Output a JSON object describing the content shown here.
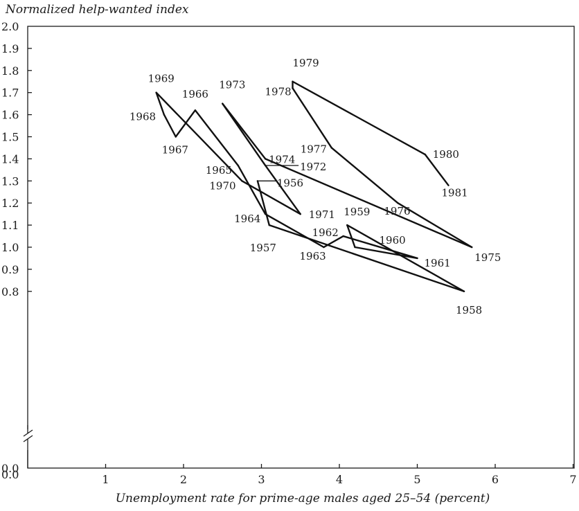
{
  "chart_data": {
    "type": "line",
    "title": "",
    "ylabel": "Normalized help-wanted index",
    "xlabel": "Unemployment rate for prime-age males aged 25–54 (percent)",
    "xlim": [
      0,
      7
    ],
    "ylim": [
      0.0,
      2.0
    ],
    "y_axis_break": "between 0.0 and 0.8",
    "grid": false,
    "x_ticks": [
      "1",
      "2",
      "3",
      "4",
      "5",
      "6",
      "7"
    ],
    "y_ticks": [
      "0.0",
      "0.8",
      "0.9",
      "1.0",
      "1.1",
      "1.2",
      "1.3",
      "1.4",
      "1.5",
      "1.6",
      "1.7",
      "1.8",
      "1.9",
      "2.0"
    ],
    "series": [
      {
        "points": [
          {
            "year": "1956",
            "x": 2.95,
            "y": 1.3
          },
          {
            "year": "1957",
            "x": 3.1,
            "y": 1.1
          },
          {
            "year": "1958",
            "x": 5.6,
            "y": 0.8
          },
          {
            "year": "1959",
            "x": 4.1,
            "y": 1.1
          },
          {
            "year": "1960",
            "x": 4.2,
            "y": 1.0
          },
          {
            "year": "1961",
            "x": 5.0,
            "y": 0.95
          },
          {
            "year": "1962",
            "x": 4.05,
            "y": 1.05
          },
          {
            "year": "1963",
            "x": 3.8,
            "y": 1.0
          },
          {
            "year": "1964",
            "x": 3.05,
            "y": 1.15
          },
          {
            "year": "1965",
            "x": 2.7,
            "y": 1.37
          },
          {
            "year": "1966",
            "x": 2.15,
            "y": 1.62
          },
          {
            "year": "1967",
            "x": 1.9,
            "y": 1.5
          },
          {
            "year": "1968",
            "x": 1.75,
            "y": 1.6
          },
          {
            "year": "1969",
            "x": 1.65,
            "y": 1.7
          },
          {
            "year": "1970",
            "x": 2.75,
            "y": 1.3
          },
          {
            "year": "1971",
            "x": 3.5,
            "y": 1.15
          },
          {
            "year": "1972",
            "x": 3.05,
            "y": 1.37
          },
          {
            "year": "1973",
            "x": 2.5,
            "y": 1.65
          },
          {
            "year": "1974",
            "x": 3.05,
            "y": 1.4
          },
          {
            "year": "1975",
            "x": 5.7,
            "y": 1.0
          },
          {
            "year": "1976",
            "x": 4.75,
            "y": 1.2
          },
          {
            "year": "1977",
            "x": 3.9,
            "y": 1.45
          },
          {
            "year": "1978",
            "x": 3.4,
            "y": 1.72
          },
          {
            "year": "1979",
            "x": 3.4,
            "y": 1.75
          },
          {
            "year": "1980",
            "x": 5.1,
            "y": 1.42
          },
          {
            "year": "1981",
            "x": 5.4,
            "y": 1.28
          }
        ]
      }
    ]
  }
}
